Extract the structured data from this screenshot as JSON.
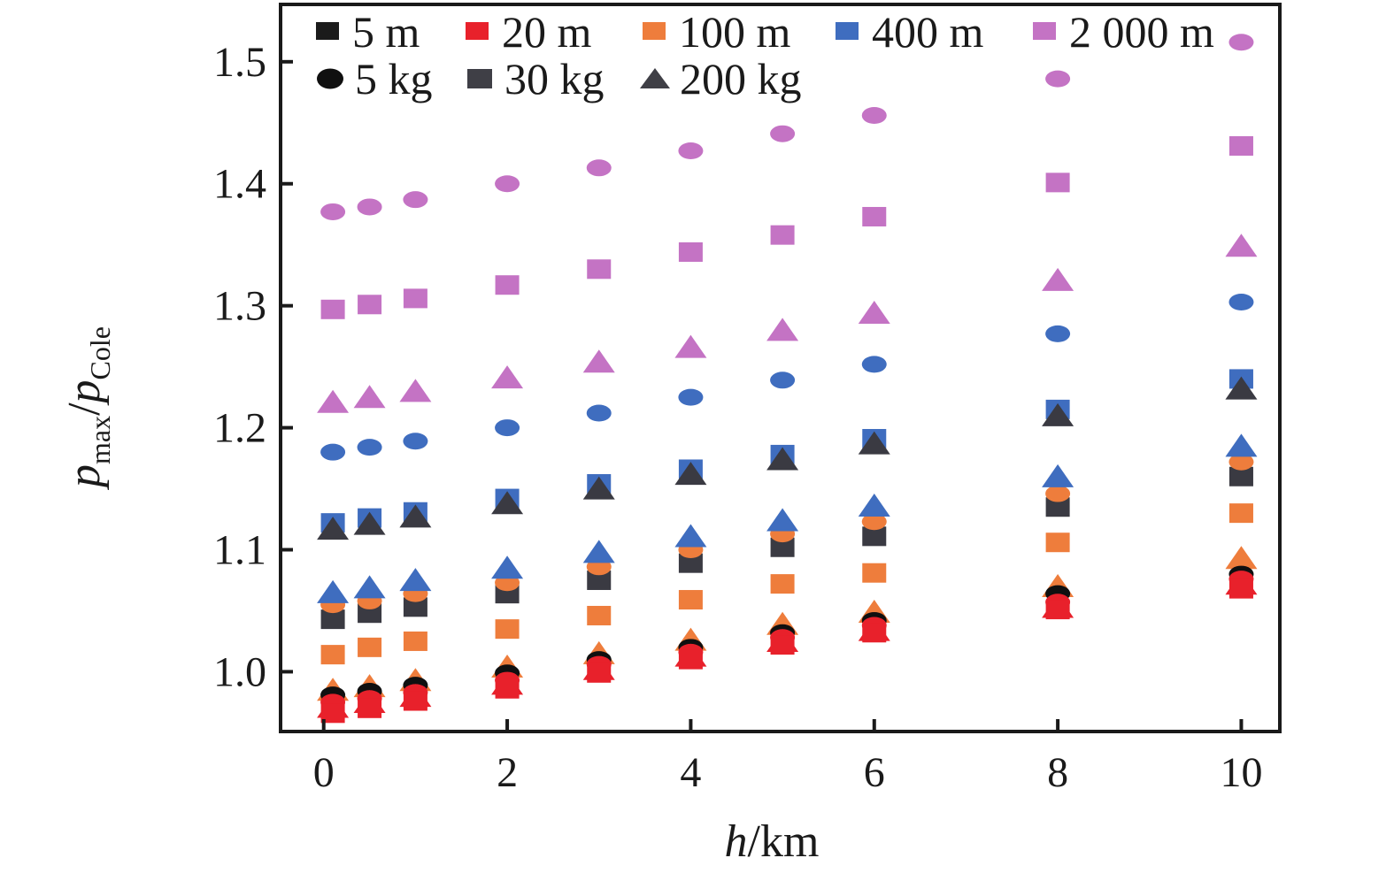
{
  "figure": {
    "xlabel": {
      "variable": "h",
      "unit_suffix": "/km"
    },
    "ylabel": {
      "var1": "p",
      "sub1": "max",
      "divider": "/",
      "var2": "p",
      "sub2": "Cole"
    },
    "x_tick_labels": [
      "0",
      "2",
      "4",
      "6",
      "8",
      "10"
    ],
    "y_tick_labels": [
      "1.0",
      "1.1",
      "1.2",
      "1.3",
      "1.4",
      "1.5"
    ]
  },
  "legend": {
    "distances": [
      {
        "label": "5 m",
        "color": "#1b1b1b"
      },
      {
        "label": "20 m",
        "color": "#e8212b"
      },
      {
        "label": "100 m",
        "color": "#ee7d3c"
      },
      {
        "label": "400 m",
        "color": "#3f6dbf"
      },
      {
        "label": "2 000 m",
        "color": "#c473c4"
      }
    ],
    "masses": [
      {
        "label": "5 kg",
        "shape": "circle",
        "color": "#101010"
      },
      {
        "label": "30 kg",
        "shape": "square",
        "color": "#3f3f46"
      },
      {
        "label": "200 kg",
        "shape": "triangle",
        "color": "#3f3f46"
      }
    ]
  },
  "chart_data": {
    "type": "scatter",
    "title": "",
    "xlabel": "h/km",
    "ylabel": "p_max/p_Cole",
    "x_ticks": [
      0,
      2,
      4,
      6,
      8,
      10
    ],
    "y_ticks": [
      1.0,
      1.1,
      1.2,
      1.3,
      1.4,
      1.5
    ],
    "xlim": [
      -0.47,
      10.42
    ],
    "ylim": [
      0.951,
      1.547
    ],
    "grid": false,
    "legend_position": "top-left-inside",
    "x": [
      0.1,
      0.5,
      1,
      2,
      3,
      4,
      5,
      6,
      8,
      10
    ],
    "series": [
      {
        "name": "2 000 m, 5 kg",
        "distance": "2 000 m",
        "mass": "5 kg",
        "shape": "circle",
        "color": "#c473c4",
        "values": [
          1.377,
          1.381,
          1.387,
          1.4,
          1.413,
          1.427,
          1.441,
          1.456,
          1.486,
          1.516
        ]
      },
      {
        "name": "2 000 m, 30 kg",
        "distance": "2 000 m",
        "mass": "30 kg",
        "shape": "square",
        "color": "#c473c4",
        "values": [
          1.297,
          1.301,
          1.306,
          1.317,
          1.33,
          1.344,
          1.358,
          1.373,
          1.401,
          1.431
        ]
      },
      {
        "name": "2 000 m, 200 kg",
        "distance": "2 000 m",
        "mass": "200 kg",
        "shape": "triangle",
        "color": "#c473c4",
        "values": [
          1.222,
          1.226,
          1.231,
          1.242,
          1.255,
          1.267,
          1.281,
          1.295,
          1.322,
          1.35
        ]
      },
      {
        "name": "400 m, 5 kg",
        "distance": "400 m",
        "mass": "5 kg",
        "shape": "circle",
        "color": "#3f6dbf",
        "values": [
          1.18,
          1.184,
          1.189,
          1.2,
          1.212,
          1.225,
          1.239,
          1.252,
          1.277,
          1.303
        ]
      },
      {
        "name": "400 m, 30 kg",
        "distance": "400 m",
        "mass": "30 kg",
        "shape": "square",
        "color": "#3f6dbf",
        "values": [
          1.122,
          1.126,
          1.131,
          1.142,
          1.154,
          1.166,
          1.178,
          1.191,
          1.215,
          1.24
        ]
      },
      {
        "name": "5 m, 200 kg",
        "distance": "5 m",
        "mass": "200 kg",
        "shape": "triangle",
        "color": "#3a3a42",
        "values": [
          1.118,
          1.122,
          1.128,
          1.139,
          1.151,
          1.163,
          1.175,
          1.188,
          1.211,
          1.233
        ]
      },
      {
        "name": "5 m, 30 kg",
        "distance": "5 m",
        "mass": "30 kg",
        "shape": "square",
        "color": "#3a3a42",
        "values": [
          1.043,
          1.048,
          1.053,
          1.064,
          1.075,
          1.089,
          1.102,
          1.111,
          1.135,
          1.16
        ]
      },
      {
        "name": "100 m, 5 kg",
        "distance": "100 m",
        "mass": "5 kg",
        "shape": "circle",
        "color": "#ee7d3c",
        "values": [
          1.055,
          1.058,
          1.064,
          1.073,
          1.086,
          1.1,
          1.113,
          1.123,
          1.146,
          1.172
        ]
      },
      {
        "name": "400 m, 200 kg",
        "distance": "400 m",
        "mass": "200 kg",
        "shape": "triangle",
        "color": "#3f6dbf",
        "values": [
          1.066,
          1.07,
          1.076,
          1.086,
          1.099,
          1.112,
          1.125,
          1.137,
          1.161,
          1.186
        ]
      },
      {
        "name": "100 m, 30 kg",
        "distance": "100 m",
        "mass": "30 kg",
        "shape": "square",
        "color": "#ee7d3c",
        "values": [
          1.014,
          1.02,
          1.025,
          1.035,
          1.046,
          1.059,
          1.072,
          1.081,
          1.106,
          1.13
        ]
      },
      {
        "name": "100 m, 200 kg",
        "distance": "100 m",
        "mass": "200 kg",
        "shape": "triangle",
        "color": "#ee7d3c",
        "values": [
          0.986,
          0.989,
          0.994,
          1.005,
          1.016,
          1.027,
          1.04,
          1.05,
          1.071,
          1.094
        ]
      },
      {
        "name": "5 m, 5 kg",
        "distance": "5 m",
        "mass": "5 kg",
        "shape": "circle",
        "color": "#101010",
        "values": [
          0.981,
          0.984,
          0.989,
          0.999,
          1.01,
          1.02,
          1.032,
          1.042,
          1.064,
          1.08
        ]
      },
      {
        "name": "20 m, 200 kg",
        "distance": "20 m",
        "mass": "200 kg",
        "shape": "triangle",
        "color": "#e8212b",
        "values": [
          0.972,
          0.976,
          0.981,
          0.991,
          1.003,
          1.014,
          1.026,
          1.035,
          1.054,
          1.073
        ]
      },
      {
        "name": "20 m, 5 kg",
        "distance": "20 m",
        "mass": "5 kg",
        "shape": "circle",
        "color": "#e8212b",
        "values": [
          0.975,
          0.978,
          0.983,
          0.993,
          1.006,
          1.016,
          1.028,
          1.038,
          1.057,
          1.076
        ]
      },
      {
        "name": "20 m, 30 kg",
        "distance": "20 m",
        "mass": "30 kg",
        "shape": "square",
        "color": "#e8212b",
        "values": [
          0.966,
          0.97,
          0.976,
          0.986,
          0.999,
          1.01,
          1.022,
          1.032,
          1.051,
          1.068
        ]
      }
    ]
  }
}
